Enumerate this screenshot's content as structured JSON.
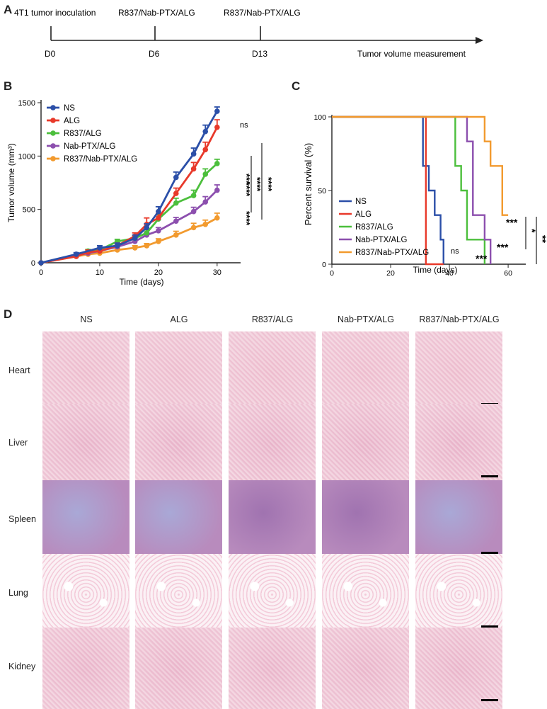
{
  "panels": {
    "a": "A",
    "b": "B",
    "c": "C",
    "d": "D"
  },
  "timeline": {
    "events": [
      {
        "top": "4T1 tumor inoculation",
        "day": "D0"
      },
      {
        "top": "R837/Nab-PTX/ALG",
        "day": "D6"
      },
      {
        "top": "R837/Nab-PTX/ALG",
        "day": "D13"
      }
    ],
    "end_label": "Tumor volume measurement"
  },
  "chart_data": [
    {
      "id": "tumor-volume",
      "type": "line",
      "xlabel": "Time (days)",
      "ylabel": "Tumor volume  (mm³)",
      "xlim": [
        0,
        34
      ],
      "ylim": [
        0,
        1500
      ],
      "xticks": [
        0,
        10,
        20,
        30
      ],
      "yticks": [
        0,
        500,
        1000,
        1500
      ],
      "legend_position": "top-left",
      "series": [
        {
          "name": "NS",
          "color": "#2b4fa8",
          "x": [
            0,
            6,
            10,
            13,
            16,
            18,
            20,
            23,
            26,
            28,
            30
          ],
          "y": [
            0,
            80,
            140,
            160,
            230,
            330,
            480,
            800,
            1020,
            1230,
            1420
          ],
          "err": [
            0,
            15,
            20,
            25,
            30,
            35,
            45,
            50,
            55,
            60,
            40
          ]
        },
        {
          "name": "ALG",
          "color": "#e8392a",
          "x": [
            0,
            6,
            8,
            10,
            13,
            16,
            18,
            20,
            23,
            26,
            28,
            30
          ],
          "y": [
            0,
            60,
            100,
            110,
            160,
            250,
            360,
            420,
            650,
            880,
            1060,
            1270
          ],
          "err": [
            0,
            10,
            20,
            15,
            25,
            30,
            60,
            40,
            50,
            60,
            70,
            70
          ]
        },
        {
          "name": "R837/ALG",
          "color": "#4cbf3c",
          "x": [
            0,
            6,
            8,
            10,
            13,
            16,
            18,
            20,
            23,
            26,
            28,
            30
          ],
          "y": [
            0,
            70,
            110,
            120,
            200,
            230,
            280,
            410,
            560,
            630,
            830,
            930
          ],
          "err": [
            0,
            10,
            15,
            15,
            20,
            25,
            30,
            40,
            45,
            50,
            50,
            40
          ]
        },
        {
          "name": "Nab-PTX/ALG",
          "color": "#8c4fae",
          "x": [
            0,
            6,
            8,
            10,
            13,
            16,
            18,
            20,
            23,
            26,
            28,
            30
          ],
          "y": [
            0,
            70,
            90,
            110,
            150,
            200,
            260,
            300,
            390,
            480,
            570,
            680
          ],
          "err": [
            0,
            10,
            15,
            15,
            20,
            25,
            25,
            30,
            35,
            40,
            50,
            50
          ]
        },
        {
          "name": "R837/Nab-PTX/ALG",
          "color": "#f29a2e",
          "x": [
            0,
            6,
            8,
            10,
            13,
            16,
            18,
            20,
            23,
            26,
            28,
            30
          ],
          "y": [
            0,
            60,
            80,
            90,
            120,
            140,
            160,
            200,
            260,
            330,
            360,
            420
          ],
          "err": [
            0,
            10,
            10,
            15,
            15,
            20,
            20,
            25,
            35,
            40,
            40,
            45
          ]
        }
      ],
      "annotations": {
        "ns": "ns",
        "alg_vs_r837": "***",
        "vs_nab": "****",
        "vs_combo": "****",
        "combo_vs_r837": "****",
        "combo_vs_ns": "****"
      }
    },
    {
      "id": "survival",
      "type": "line",
      "step": true,
      "xlabel": "Time (days)",
      "ylabel": "Percent survival (%)",
      "xlim": [
        0,
        66
      ],
      "ylim": [
        0,
        100
      ],
      "xticks": [
        0,
        20,
        40,
        60
      ],
      "yticks": [
        0,
        50,
        100
      ],
      "legend_position": "bottom-left",
      "series": [
        {
          "name": "NS",
          "color": "#2b4fa8",
          "x": [
            0,
            30,
            31,
            33,
            35,
            37,
            38
          ],
          "y": [
            100,
            100,
            66.7,
            50,
            33.3,
            16.7,
            0
          ]
        },
        {
          "name": "ALG",
          "color": "#e8392a",
          "x": [
            0,
            31,
            32,
            38
          ],
          "y": [
            100,
            100,
            0,
            0
          ]
        },
        {
          "name": "R837/ALG",
          "color": "#4cbf3c",
          "x": [
            0,
            40,
            42,
            44,
            46,
            50,
            52
          ],
          "y": [
            100,
            100,
            66.7,
            50,
            16.7,
            16.7,
            0
          ]
        },
        {
          "name": "Nab-PTX/ALG",
          "color": "#8c4fae",
          "x": [
            0,
            43,
            46,
            48,
            52,
            54
          ],
          "y": [
            100,
            100,
            83.3,
            33.3,
            16.7,
            0
          ]
        },
        {
          "name": "R837/Nab-PTX/ALG",
          "color": "#f29a2e",
          "x": [
            0,
            50,
            52,
            54,
            58,
            60
          ],
          "y": [
            100,
            100,
            83.3,
            66.7,
            33.3,
            33.3
          ]
        }
      ],
      "annotations": {
        "ns": "ns",
        "r837": "***",
        "nab": "***",
        "combo": "***",
        "single": "*",
        "double": "**"
      }
    }
  ],
  "histology": {
    "columns": [
      "NS",
      "ALG",
      "R837/ALG",
      "Nab-PTX/ALG",
      "R837/Nab-PTX/ALG"
    ],
    "rows": [
      "Heart",
      "Liver",
      "Spleen",
      "Lung",
      "Kidney"
    ],
    "tissue_colors": {
      "Heart": "#f1c7d5",
      "Liver": "#ecbdd0",
      "Spleen": "#b88bbd",
      "Lung": "#f8e6ee",
      "Kidney": "#edbfd1"
    }
  }
}
